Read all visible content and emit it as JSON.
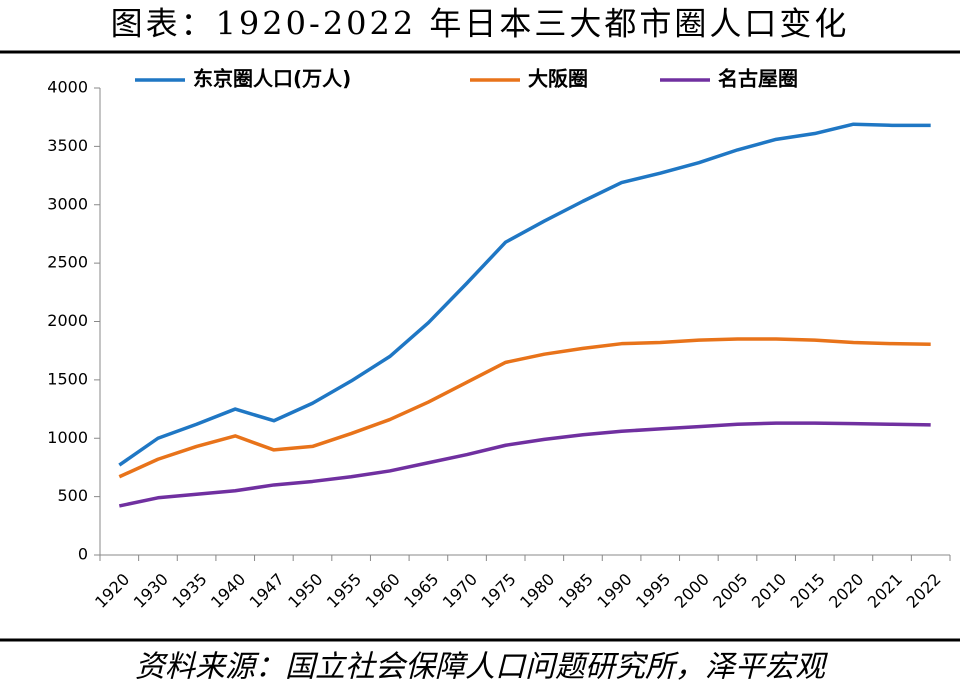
{
  "chart_data": {
    "type": "line",
    "title": "图表：1920-2022 年日本三大都市圈人口变化",
    "source": "资料来源：国立社会保障人口问题研究所，泽平宏观",
    "categories": [
      "1920",
      "1930",
      "1935",
      "1940",
      "1947",
      "1950",
      "1955",
      "1960",
      "1965",
      "1970",
      "1975",
      "1980",
      "1985",
      "1990",
      "1995",
      "2000",
      "2005",
      "2010",
      "2015",
      "2020",
      "2021",
      "2022"
    ],
    "series": [
      {
        "name": "东京圈人口(万人)",
        "color": "#1f77c4",
        "values": [
          770,
          1000,
          1120,
          1250,
          1150,
          1300,
          1490,
          1700,
          1990,
          2330,
          2680,
          2860,
          3030,
          3190,
          3270,
          3360,
          3470,
          3560,
          3610,
          3690,
          3680,
          3680
        ]
      },
      {
        "name": "大阪圈",
        "color": "#e8731a",
        "values": [
          670,
          820,
          930,
          1020,
          900,
          930,
          1040,
          1160,
          1310,
          1480,
          1650,
          1720,
          1770,
          1810,
          1820,
          1840,
          1850,
          1850,
          1840,
          1820,
          1810,
          1805
        ]
      },
      {
        "name": "名古屋圈",
        "color": "#7030a0",
        "values": [
          420,
          490,
          520,
          550,
          600,
          630,
          670,
          720,
          790,
          860,
          940,
          990,
          1030,
          1060,
          1080,
          1100,
          1120,
          1130,
          1130,
          1125,
          1120,
          1115
        ]
      }
    ],
    "ylim": [
      0,
      4000
    ],
    "yticks": [
      0,
      500,
      1000,
      1500,
      2000,
      2500,
      3000,
      3500,
      4000
    ],
    "grid": false
  }
}
